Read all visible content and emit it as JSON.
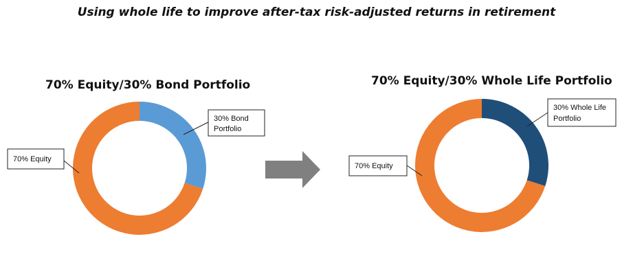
{
  "page": {
    "title": "Using whole life to improve after-tax risk-adjusted returns in retirement"
  },
  "colors": {
    "equity": "#ED7D31",
    "bond": "#5B9BD5",
    "whole_life": "#1F4E79",
    "arrow": "#808080"
  },
  "chart_data": [
    {
      "type": "pie",
      "title": "70% Equity/30% Bond Portfolio",
      "labels": [
        "30% Bond Portfolio",
        "70% Equity"
      ],
      "values": [
        30,
        70
      ],
      "colors": [
        "#5B9BD5",
        "#ED7D31"
      ],
      "donut": true
    },
    {
      "type": "pie",
      "title": "70% Equity/30% Whole Life Portfolio",
      "labels": [
        "30% Whole Life Portfolio",
        "70% Equity"
      ],
      "values": [
        30,
        70
      ],
      "colors": [
        "#1F4E79",
        "#ED7D31"
      ],
      "donut": true
    }
  ],
  "callouts": {
    "left_bond": [
      "30% Bond",
      "Portfolio"
    ],
    "left_equity": [
      "70% Equity"
    ],
    "right_wl": [
      "30% Whole Life",
      "Portfolio"
    ],
    "right_equity": [
      "70% Equity"
    ]
  }
}
